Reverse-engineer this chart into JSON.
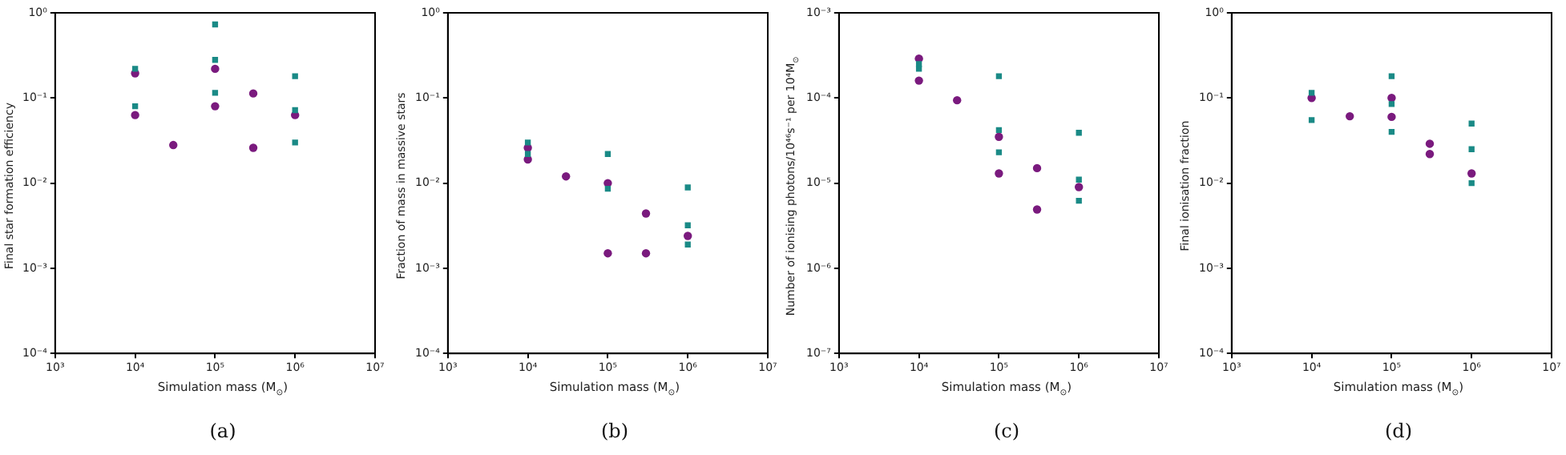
{
  "chart_data": [
    {
      "type": "scatter",
      "xlabel": "Simulation mass (M$_{⊙}$)",
      "ylabel": "Final star formation efficiency",
      "annotations": [
        "(a)"
      ],
      "log": "xy",
      "grid": false,
      "xlim": [
        1000,
        10000000
      ],
      "ylim": [
        0.0001,
        1
      ],
      "xticks": [
        {
          "value": 1000,
          "label": "10³"
        },
        {
          "value": 10000,
          "label": "10⁴"
        },
        {
          "value": 100000,
          "label": "10⁵"
        },
        {
          "value": 1000000,
          "label": "10⁶"
        },
        {
          "value": 10000000,
          "label": "10⁷"
        }
      ],
      "yticks": [
        {
          "value": 0.0001,
          "label": "10⁻⁴"
        },
        {
          "value": 0.001,
          "label": "10⁻³"
        },
        {
          "value": 0.01,
          "label": "10⁻²"
        },
        {
          "value": 0.1,
          "label": "10⁻¹"
        },
        {
          "value": 1,
          "label": "10⁰"
        }
      ],
      "series": [
        {
          "color": "#1a8a86",
          "marker": "square",
          "x": [
            10000,
            10000,
            100000,
            100000,
            100000,
            1000000,
            1000000,
            1000000
          ],
          "values": [
            0.22,
            0.08,
            0.73,
            0.28,
            0.115,
            0.18,
            0.072,
            0.03
          ]
        },
        {
          "color": "#7a1a7e",
          "marker": "circle",
          "x": [
            10000,
            10000,
            30000,
            100000,
            100000,
            300000,
            300000,
            1000000
          ],
          "values": [
            0.195,
            0.063,
            0.028,
            0.22,
            0.08,
            0.113,
            0.026,
            0.063
          ]
        }
      ]
    },
    {
      "type": "scatter",
      "xlabel": "Simulation mass (M$_{⊙}$)",
      "ylabel": "Fraction of mass in massive stars",
      "annotations": [
        "(b)"
      ],
      "log": "xy",
      "grid": false,
      "xlim": [
        1000,
        10000000
      ],
      "ylim": [
        0.0001,
        1
      ],
      "xticks": [
        {
          "value": 1000,
          "label": "10³"
        },
        {
          "value": 10000,
          "label": "10⁴"
        },
        {
          "value": 100000,
          "label": "10⁵"
        },
        {
          "value": 1000000,
          "label": "10⁶"
        },
        {
          "value": 10000000,
          "label": "10⁷"
        }
      ],
      "yticks": [
        {
          "value": 0.0001,
          "label": "10⁻⁴"
        },
        {
          "value": 0.001,
          "label": "10⁻³"
        },
        {
          "value": 0.01,
          "label": "10⁻²"
        },
        {
          "value": 0.1,
          "label": "10⁻¹"
        },
        {
          "value": 1,
          "label": "10⁰"
        }
      ],
      "series": [
        {
          "color": "#1a8a86",
          "marker": "square",
          "x": [
            10000,
            10000,
            100000,
            100000,
            1000000,
            1000000,
            1000000
          ],
          "values": [
            0.03,
            0.022,
            0.022,
            0.0086,
            0.0089,
            0.0032,
            0.0019
          ]
        },
        {
          "color": "#7a1a7e",
          "marker": "circle",
          "x": [
            10000,
            10000,
            30000,
            100000,
            100000,
            300000,
            300000,
            1000000
          ],
          "values": [
            0.026,
            0.019,
            0.012,
            0.01,
            0.0015,
            0.0044,
            0.0015,
            0.0024
          ]
        }
      ]
    },
    {
      "type": "scatter",
      "xlabel": "Simulation mass (M$_{⊙}$)",
      "ylabel": "Number of ionising photons/10⁴⁶s⁻¹ per 10⁴M$_{⊙}$",
      "annotations": [
        "(c)"
      ],
      "log": "xy",
      "grid": false,
      "xlim": [
        1000,
        10000000
      ],
      "ylim": [
        1e-07,
        0.001
      ],
      "xticks": [
        {
          "value": 1000,
          "label": "10³"
        },
        {
          "value": 10000,
          "label": "10⁴"
        },
        {
          "value": 100000,
          "label": "10⁵"
        },
        {
          "value": 1000000,
          "label": "10⁶"
        },
        {
          "value": 10000000,
          "label": "10⁷"
        }
      ],
      "yticks": [
        {
          "value": 1e-07,
          "label": "10⁻⁷"
        },
        {
          "value": 1e-06,
          "label": "10⁻⁶"
        },
        {
          "value": 1e-05,
          "label": "10⁻⁵"
        },
        {
          "value": 0.0001,
          "label": "10⁻⁴"
        },
        {
          "value": 0.001,
          "label": "10⁻³"
        }
      ],
      "series": [
        {
          "color": "#1a8a86",
          "marker": "square",
          "x": [
            10000,
            10000,
            100000,
            100000,
            100000,
            1000000,
            1000000,
            1000000
          ],
          "values": [
            0.00025,
            0.00022,
            0.00018,
            4.2e-05,
            2.3e-05,
            3.9e-05,
            1.1e-05,
            6.2e-06
          ]
        },
        {
          "color": "#7a1a7e",
          "marker": "circle",
          "x": [
            10000,
            10000,
            30000,
            100000,
            100000,
            300000,
            300000,
            1000000
          ],
          "values": [
            0.00029,
            0.00016,
            9.4e-05,
            3.5e-05,
            1.3e-05,
            1.5e-05,
            4.9e-06,
            9e-06
          ]
        }
      ]
    },
    {
      "type": "scatter",
      "xlabel": "Simulation mass (M$_{⊙}$)",
      "ylabel": "Final ionisation fraction",
      "annotations": [
        "(d)"
      ],
      "log": "xy",
      "grid": false,
      "xlim": [
        1000,
        10000000
      ],
      "ylim": [
        0.0001,
        1
      ],
      "xticks": [
        {
          "value": 1000,
          "label": "10³"
        },
        {
          "value": 10000,
          "label": "10⁴"
        },
        {
          "value": 100000,
          "label": "10⁵"
        },
        {
          "value": 1000000,
          "label": "10⁶"
        },
        {
          "value": 10000000,
          "label": "10⁷"
        }
      ],
      "yticks": [
        {
          "value": 0.0001,
          "label": "10⁻⁴"
        },
        {
          "value": 0.001,
          "label": "10⁻³"
        },
        {
          "value": 0.01,
          "label": "10⁻²"
        },
        {
          "value": 0.1,
          "label": "10⁻¹"
        },
        {
          "value": 1,
          "label": "10⁰"
        }
      ],
      "series": [
        {
          "color": "#1a8a86",
          "marker": "square",
          "x": [
            10000,
            10000,
            100000,
            100000,
            100000,
            1000000,
            1000000,
            1000000
          ],
          "values": [
            0.115,
            0.055,
            0.18,
            0.085,
            0.04,
            0.05,
            0.025,
            0.01
          ]
        },
        {
          "color": "#7a1a7e",
          "marker": "circle",
          "x": [
            10000,
            30000,
            100000,
            100000,
            300000,
            300000,
            1000000
          ],
          "values": [
            0.1,
            0.061,
            0.1,
            0.06,
            0.029,
            0.022,
            0.013
          ]
        }
      ]
    }
  ]
}
